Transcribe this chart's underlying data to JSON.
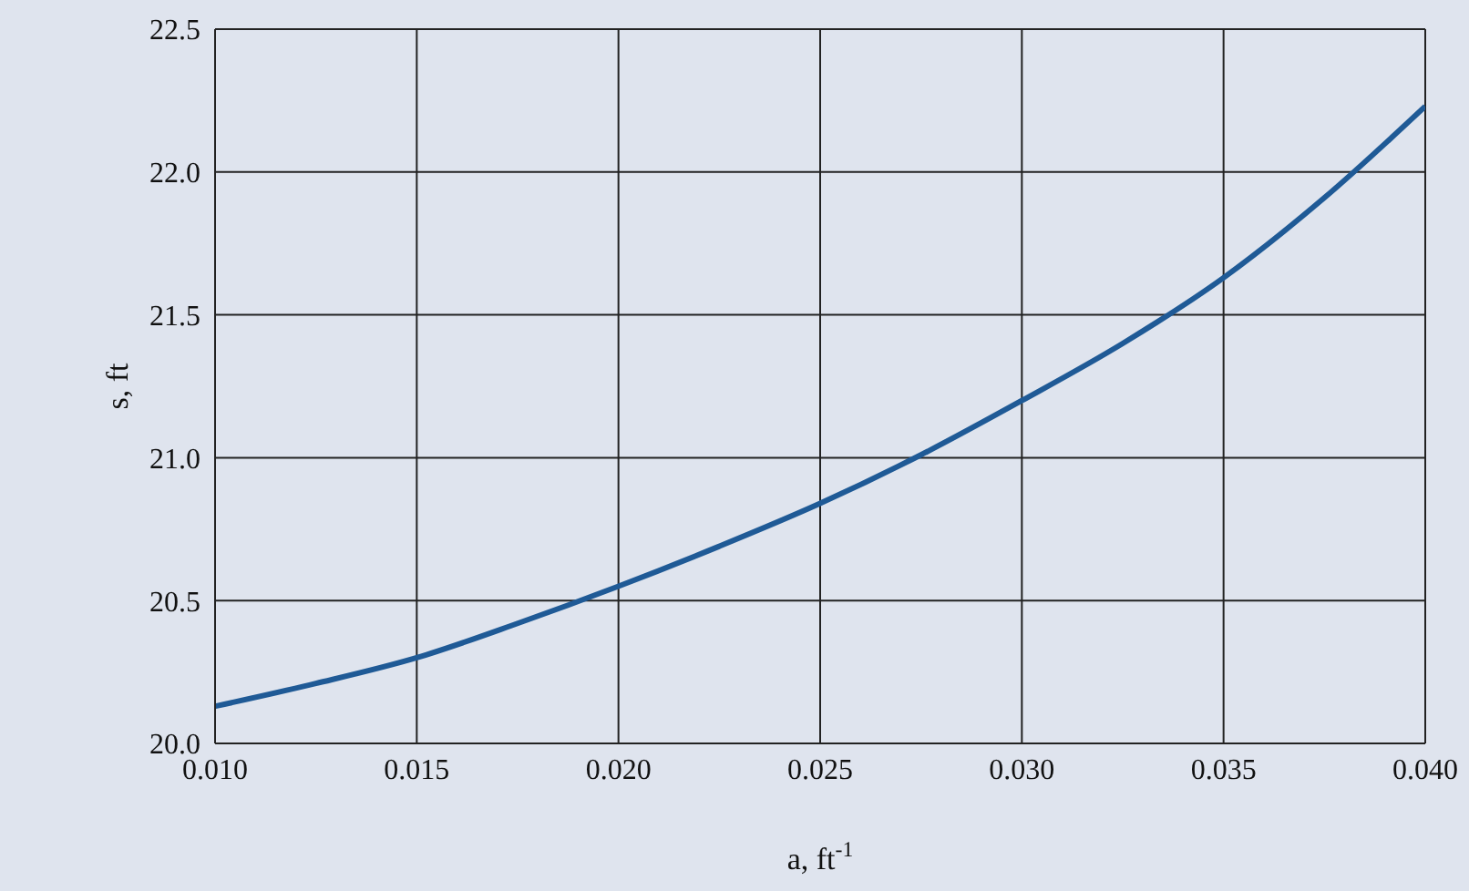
{
  "chart_data": {
    "type": "line",
    "xlabel": "a, ft$^{-1}$",
    "ylabel": "s, ft",
    "x": [
      0.01,
      0.0125,
      0.015,
      0.0175,
      0.02,
      0.0225,
      0.025,
      0.0275,
      0.03,
      0.0325,
      0.035,
      0.0375,
      0.04
    ],
    "series": [
      {
        "color": "#1f5a96",
        "values": [
          20.13,
          20.21,
          20.3,
          20.42,
          20.55,
          20.69,
          20.84,
          21.01,
          21.2,
          21.4,
          21.63,
          21.91,
          22.23
        ]
      }
    ],
    "xlim": [
      0.01,
      0.04
    ],
    "xticks": [
      {
        "value": 0.01,
        "label": "0.010"
      },
      {
        "value": 0.015,
        "label": "0.015"
      },
      {
        "value": 0.02,
        "label": "0.020"
      },
      {
        "value": 0.025,
        "label": "0.025"
      },
      {
        "value": 0.03,
        "label": "0.030"
      },
      {
        "value": 0.035,
        "label": "0.035"
      },
      {
        "value": 0.04,
        "label": "0.040"
      }
    ],
    "ylim": [
      20.0,
      22.5
    ],
    "yticks": [
      {
        "value": 20.0,
        "label": "20.0"
      },
      {
        "value": 20.5,
        "label": "20.5"
      },
      {
        "value": 21.0,
        "label": "21.0"
      },
      {
        "value": 21.5,
        "label": "21.5"
      },
      {
        "value": 22.0,
        "label": "22.0"
      },
      {
        "value": 22.5,
        "label": "22.5"
      }
    ],
    "grid": true,
    "marker": "none",
    "line_style": "solid"
  }
}
